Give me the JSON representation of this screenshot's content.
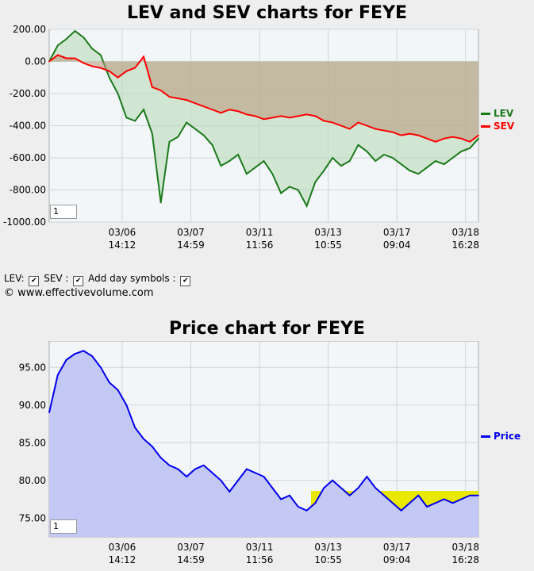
{
  "lev_chart": {
    "title": "LEV and SEV charts for FEYE",
    "zoom_value": "1",
    "y_ticks": [
      "200.00",
      "0.00",
      "-200.00",
      "-400.00",
      "-600.00",
      "-800.00",
      "-1000.00"
    ],
    "ylim": [
      -1000,
      200
    ],
    "x_ticks": [
      {
        "date": "03/06",
        "time": "14:12"
      },
      {
        "date": "03/07",
        "time": "14:59"
      },
      {
        "date": "03/11",
        "time": "11:56"
      },
      {
        "date": "03/13",
        "time": "10:55"
      },
      {
        "date": "03/17",
        "time": "09:04"
      },
      {
        "date": "03/18",
        "time": "16:28"
      }
    ],
    "series": [
      {
        "name": "LEV",
        "color": "#1a7a1a"
      },
      {
        "name": "SEV",
        "color": "#ff0000"
      }
    ]
  },
  "controls": {
    "lev_label": "LEV:",
    "sev_label": "SEV :",
    "day_label": "Add day symbols :",
    "lev_checked": true,
    "sev_checked": true,
    "day_checked": true
  },
  "copyright": "© www.effectivevolume.com",
  "price_chart": {
    "title": "Price chart for FEYE",
    "zoom_value": "1",
    "y_ticks": [
      "95.00",
      "90.00",
      "85.00",
      "80.00",
      "75.00"
    ],
    "ylim": [
      72.5,
      98.5
    ],
    "x_ticks": [
      {
        "date": "03/06",
        "time": "14:12"
      },
      {
        "date": "03/07",
        "time": "14:59"
      },
      {
        "date": "03/11",
        "time": "11:56"
      },
      {
        "date": "03/13",
        "time": "10:55"
      },
      {
        "date": "03/17",
        "time": "09:04"
      },
      {
        "date": "03/18",
        "time": "16:28"
      }
    ],
    "series": [
      {
        "name": "Price",
        "color": "#0000ee"
      }
    ],
    "highlight_range": [
      76.2,
      78.6
    ]
  },
  "chart_data": [
    {
      "type": "line",
      "title": "LEV and SEV charts for FEYE",
      "ylim": [
        -1000,
        200
      ],
      "x_tick_labels": [
        "03/06 14:12",
        "03/07 14:59",
        "03/11 11:56",
        "03/13 10:55",
        "03/17 09:04",
        "03/18 16:28"
      ],
      "x": [
        0,
        2,
        4,
        6,
        8,
        10,
        12,
        14,
        16,
        18,
        20,
        22,
        24,
        26,
        28,
        30,
        32,
        34,
        36,
        38,
        40,
        42,
        44,
        46,
        48,
        50,
        52,
        54,
        56,
        58,
        60,
        62,
        64,
        66,
        68,
        70,
        72,
        74,
        76,
        78,
        80,
        82,
        84,
        86,
        88,
        90,
        92,
        94,
        96,
        98,
        100
      ],
      "series": [
        {
          "name": "LEV",
          "values": [
            0,
            100,
            140,
            190,
            150,
            80,
            40,
            -100,
            -200,
            -350,
            -370,
            -300,
            -450,
            -880,
            -500,
            -470,
            -380,
            -420,
            -460,
            -520,
            -650,
            -620,
            -580,
            -700,
            -660,
            -620,
            -700,
            -820,
            -780,
            -800,
            -900,
            -750,
            -680,
            -600,
            -650,
            -620,
            -520,
            -560,
            -620,
            -580,
            -600,
            -640,
            -680,
            -700,
            -660,
            -620,
            -640,
            -600,
            -560,
            -540,
            -480
          ]
        },
        {
          "name": "SEV",
          "values": [
            0,
            40,
            20,
            20,
            -10,
            -30,
            -40,
            -60,
            -100,
            -60,
            -40,
            30,
            -160,
            -180,
            -220,
            -230,
            -240,
            -260,
            -280,
            -300,
            -320,
            -300,
            -310,
            -330,
            -340,
            -360,
            -350,
            -340,
            -350,
            -340,
            -330,
            -340,
            -370,
            -380,
            -400,
            -420,
            -380,
            -400,
            -420,
            -430,
            -440,
            -460,
            -450,
            -460,
            -480,
            -500,
            -480,
            -470,
            -480,
            -500,
            -460
          ]
        }
      ],
      "y_tick_labels": [
        "200.00",
        "0.00",
        "-200.00",
        "-400.00",
        "-600.00",
        "-800.00",
        "-1000.00"
      ]
    },
    {
      "type": "area",
      "title": "Price chart for FEYE",
      "ylim": [
        72.5,
        98.5
      ],
      "x_tick_labels": [
        "03/06 14:12",
        "03/07 14:59",
        "03/11 11:56",
        "03/13 10:55",
        "03/17 09:04",
        "03/18 16:28"
      ],
      "x": [
        0,
        2,
        4,
        6,
        8,
        10,
        12,
        14,
        16,
        18,
        20,
        22,
        24,
        26,
        28,
        30,
        32,
        34,
        36,
        38,
        40,
        42,
        44,
        46,
        48,
        50,
        52,
        54,
        56,
        58,
        60,
        62,
        64,
        66,
        68,
        70,
        72,
        74,
        76,
        78,
        80,
        82,
        84,
        86,
        88,
        90,
        92,
        94,
        96,
        98,
        100
      ],
      "series": [
        {
          "name": "Price",
          "values": [
            89,
            94,
            96,
            96.8,
            97.2,
            96.5,
            95,
            93,
            92,
            90,
            87,
            85.5,
            84.5,
            83,
            82,
            81.5,
            80.5,
            81.5,
            82,
            81,
            80,
            78.5,
            80,
            81.5,
            81,
            80.5,
            79,
            77.5,
            78,
            76.5,
            76,
            77,
            79,
            80,
            79,
            78,
            79,
            80.5,
            79,
            78,
            77,
            76,
            77,
            78,
            76.5,
            77,
            77.5,
            77,
            77.5,
            78,
            78
          ]
        }
      ],
      "y_tick_labels": [
        "95.00",
        "90.00",
        "85.00",
        "80.00",
        "75.00"
      ]
    }
  ]
}
